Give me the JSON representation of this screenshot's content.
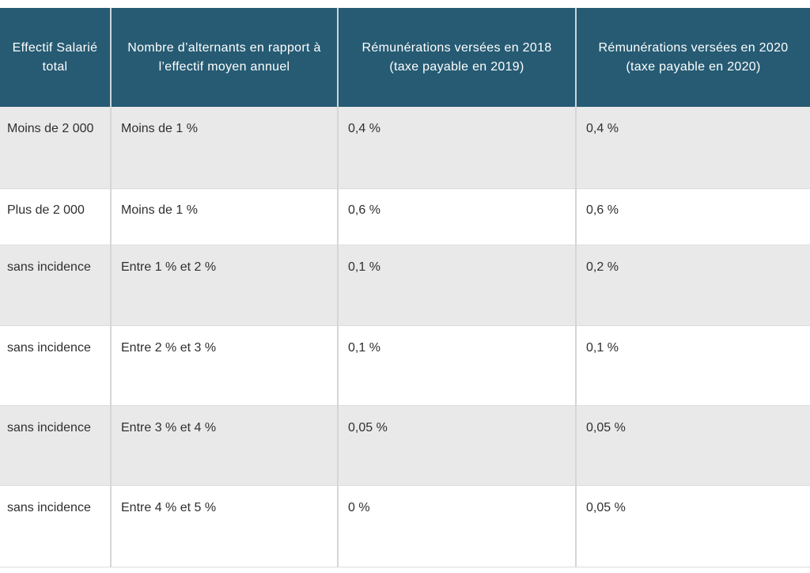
{
  "table": {
    "headers": [
      "Effectif Salarié total",
      "Nombre d’alternants en rapport à l’effectif moyen annuel",
      "Rémunérations versées en 2018 (taxe payable en 2019)",
      "Rémunérations versées en 2020 (taxe payable en 2020)"
    ],
    "rows": [
      [
        "Moins de 2 000",
        "Moins de 1 %",
        "0,4 %",
        "0,4 %"
      ],
      [
        "Plus de 2 000",
        "Moins de 1 %",
        "0,6 %",
        "0,6 %"
      ],
      [
        "sans incidence",
        "Entre 1 % et 2 %",
        "0,1 %",
        "0,2 %"
      ],
      [
        "sans incidence",
        "Entre 2 % et 3 %",
        "0,1 %",
        "0,1 %"
      ],
      [
        "sans incidence",
        "Entre 3 % et 4 %",
        "0,05 %",
        "0,05 %"
      ],
      [
        "sans incidence",
        "Entre 4 % et 5 %",
        "0 %",
        "0,05 %"
      ]
    ]
  },
  "colors": {
    "header_bg": "#265b73",
    "row_shade": "#e9e9e9",
    "row_plain": "#ffffff"
  }
}
